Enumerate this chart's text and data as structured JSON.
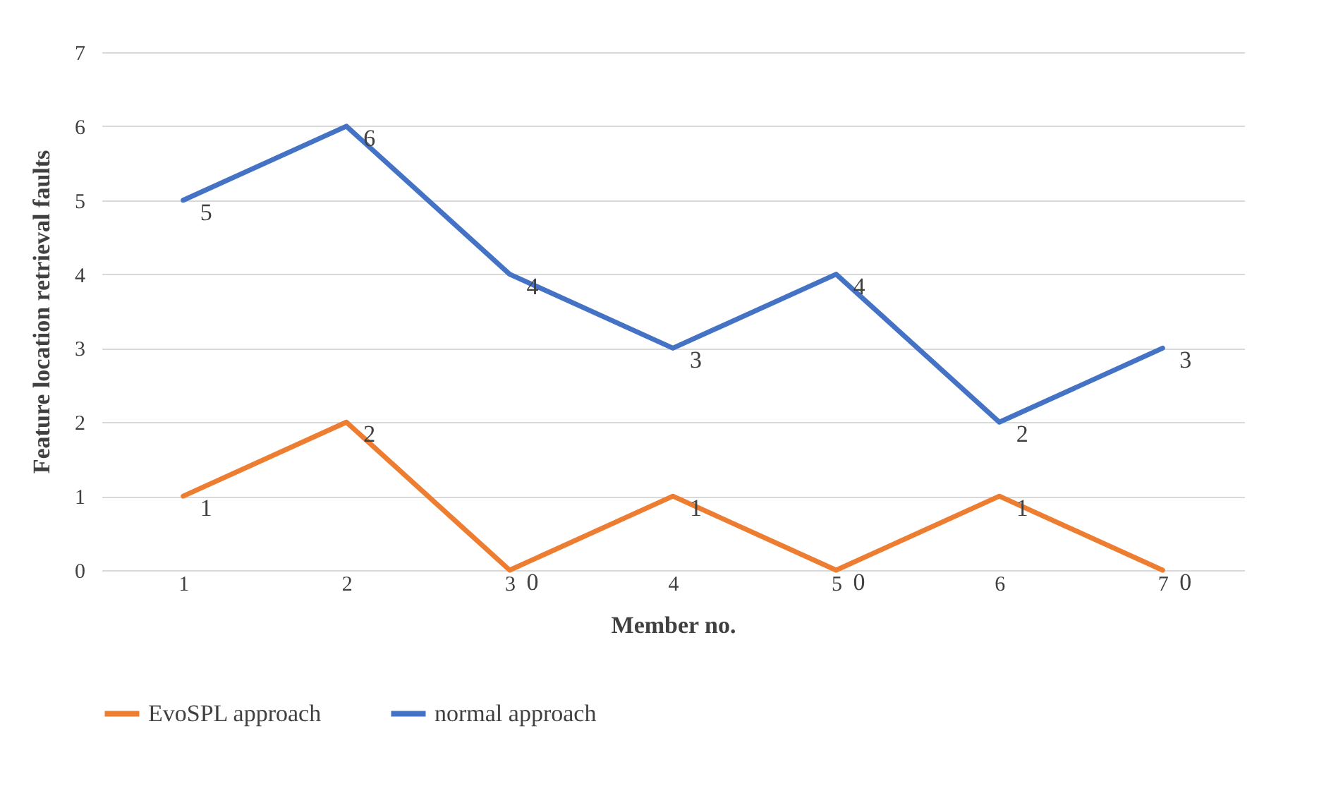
{
  "chart_data": {
    "type": "line",
    "xlabel": "Member no.",
    "ylabel": "Feature  location  retrieval  faults",
    "categories": [
      "1",
      "2",
      "3",
      "4",
      "5",
      "6",
      "7"
    ],
    "series": [
      {
        "name": "EvoSPL approach",
        "color": "#ed7d31",
        "values": [
          1,
          2,
          0,
          1,
          0,
          1,
          0
        ]
      },
      {
        "name": "normal approach",
        "color": "#4472c4",
        "values": [
          5,
          6,
          4,
          3,
          4,
          2,
          3
        ]
      }
    ],
    "ylim": [
      0,
      7
    ],
    "yticks": [
      0,
      1,
      2,
      3,
      4,
      5,
      6,
      7
    ],
    "grid": "y",
    "legend": "bottom",
    "data_labels": true,
    "marker": "none",
    "line_style": "solid"
  }
}
